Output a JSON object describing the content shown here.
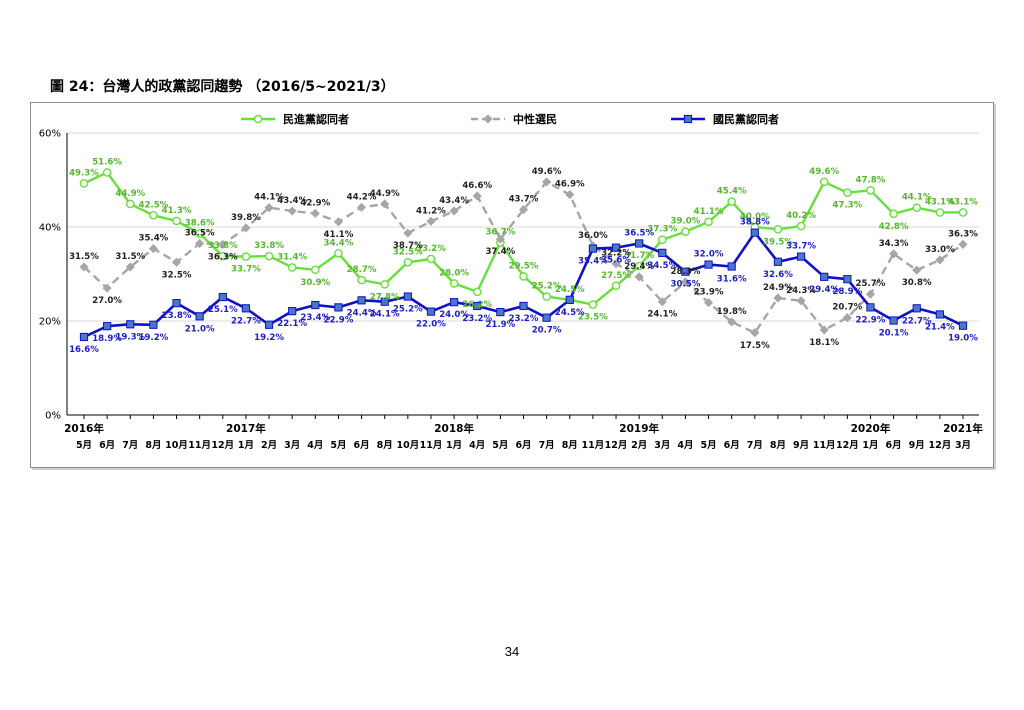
{
  "figure": {
    "title": "圖 24：台灣人的政黨認同趨勢 （2016/5~2021/3）",
    "page_number": "34"
  },
  "chart_data": {
    "type": "line",
    "title": "",
    "xlabel": "",
    "ylabel": "",
    "ylim": [
      0,
      60
    ],
    "y_ticks": [
      "0%",
      "20%",
      "40%",
      "60%"
    ],
    "y_tick_values": [
      0,
      20,
      40,
      60
    ],
    "grid": true,
    "legend_position": "top",
    "categories": [
      "5月",
      "6月",
      "7月",
      "8月",
      "10月",
      "11月",
      "12月",
      "1月",
      "2月",
      "3月",
      "4月",
      "5月",
      "6月",
      "8月",
      "10月",
      "11月",
      "1月",
      "4月",
      "5月",
      "6月",
      "7月",
      "8月",
      "11月",
      "12月",
      "2月",
      "3月",
      "4月",
      "5月",
      "6月",
      "7月",
      "8月",
      "9月",
      "11月",
      "12月",
      "1月",
      "6月",
      "9月",
      "12月",
      "3月"
    ],
    "year_labels": [
      {
        "label": "2016年",
        "at_index": 0
      },
      {
        "label": "2017年",
        "at_index": 7
      },
      {
        "label": "2018年",
        "at_index": 16
      },
      {
        "label": "2019年",
        "at_index": 24
      },
      {
        "label": "2020年",
        "at_index": 34
      },
      {
        "label": "2021年",
        "at_index": 38
      }
    ],
    "series": [
      {
        "name": "民進黨認同者",
        "color": "#66e03a",
        "dash": false,
        "marker": "circle",
        "values": [
          49.3,
          51.6,
          44.9,
          42.5,
          41.3,
          38.6,
          33.8,
          33.7,
          33.8,
          31.4,
          30.9,
          34.4,
          28.7,
          27.8,
          32.5,
          33.2,
          28.0,
          26.2,
          36.7,
          29.5,
          25.2,
          24.5,
          23.5,
          27.5,
          31.7,
          37.3,
          39.0,
          41.1,
          45.4,
          40.0,
          39.5,
          40.2,
          49.6,
          47.3,
          47.8,
          42.8,
          44.1,
          43.1,
          43.1
        ],
        "labels": [
          "49.3%",
          "51.6%",
          "44.9%",
          "42.5%",
          "41.3%",
          "38.6%",
          "33.8%",
          "33.7%",
          "33.8%",
          "31.4%",
          "30.9%",
          "34.4%",
          "28.7%",
          "27.8%",
          "32.5%",
          "33.2%",
          "28.0%",
          "26.2%",
          "36.7%",
          "29.5%",
          "25.2%",
          "24.5%",
          "23.5%",
          "27.5%",
          "31.7%",
          "37.3%",
          "39.0%",
          "41.1%",
          "45.4%",
          "40.0%",
          "39.5%",
          "40.2%",
          "49.6%",
          "47.3%",
          "47.8%",
          "42.8%",
          "44.1%",
          "43.1%",
          "43.1%"
        ]
      },
      {
        "name": "中性選民",
        "color": "#a6a6a6",
        "dash": true,
        "marker": "diamond",
        "values": [
          31.5,
          27.0,
          31.5,
          35.4,
          32.5,
          36.5,
          36.3,
          39.8,
          44.1,
          43.4,
          42.9,
          41.1,
          44.2,
          44.9,
          38.7,
          41.2,
          43.4,
          46.6,
          37.4,
          43.7,
          49.6,
          46.9,
          36.0,
          32.2,
          29.4,
          24.1,
          28.3,
          23.9,
          19.8,
          17.5,
          24.9,
          24.3,
          18.1,
          20.7,
          25.7,
          34.3,
          30.8,
          33.0,
          36.3
        ],
        "labels": [
          "31.5%",
          "27.0%",
          "31.5%",
          "35.4%",
          "32.5%",
          "36.5%",
          "36.3%",
          "39.8%",
          "44.1%",
          "43.4%",
          "42.9%",
          "41.1%",
          "44.2%",
          "44.9%",
          "38.7%",
          "41.2%",
          "43.4%",
          "46.6%",
          "37.4%",
          "43.7%",
          "49.6%",
          "46.9%",
          "36.0%",
          "32.2%",
          "29.4%",
          "24.1%",
          "28.3%",
          "23.9%",
          "19.8%",
          "17.5%",
          "24.9%",
          "24.3%",
          "18.1%",
          "20.7%",
          "25.7%",
          "34.3%",
          "30.8%",
          "33.0%",
          "36.3%"
        ]
      },
      {
        "name": "國民黨認同者",
        "color": "#1010c8",
        "dash": false,
        "marker": "square",
        "values": [
          16.6,
          18.9,
          19.3,
          19.2,
          23.8,
          21.0,
          25.1,
          22.7,
          19.2,
          22.1,
          23.4,
          22.9,
          24.4,
          24.1,
          25.2,
          22.0,
          24.0,
          23.2,
          21.9,
          23.2,
          20.7,
          24.5,
          35.4,
          35.6,
          36.5,
          34.5,
          30.5,
          32.0,
          31.6,
          38.8,
          32.6,
          33.7,
          29.4,
          28.9,
          22.9,
          20.1,
          22.7,
          21.4,
          19.0
        ],
        "labels": [
          "16.6%",
          "18.9%",
          "19.3%",
          "19.2%",
          "23.8%",
          "21.0%",
          "25.1%",
          "22.7%",
          "19.2%",
          "22.1%",
          "23.4%",
          "22.9%",
          "24.4%",
          "24.1%",
          "25.2%",
          "22.0%",
          "24.0%",
          "23.2%",
          "21.9%",
          "23.2%",
          "20.7%",
          "24.5%",
          "35.4%",
          "35.6%",
          "36.5%",
          "34.5%",
          "30.5%",
          "32.0%",
          "31.6%",
          "38.8%",
          "32.6%",
          "33.7%",
          "29.4%",
          "28.9%",
          "22.9%",
          "20.1%",
          "22.7%",
          "21.4%",
          "19.0%"
        ]
      }
    ]
  }
}
